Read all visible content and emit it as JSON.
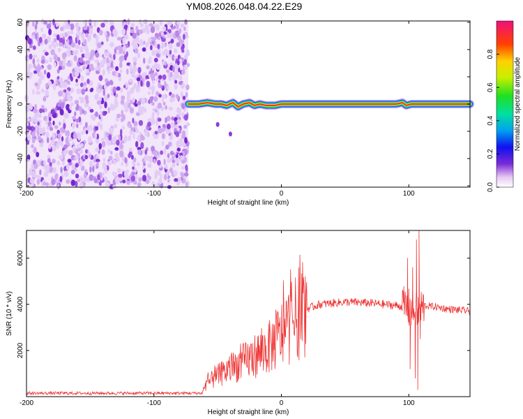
{
  "title": "YM08.2026.048.04.22.E29",
  "chart_data": [
    {
      "type": "heatmap",
      "name": "spectrogram",
      "xlabel": "Height of straight line (km)",
      "ylabel": "Frequency (Hz)",
      "xlim": [
        -200,
        148
      ],
      "ylim": [
        -61,
        61
      ],
      "xticks": [
        "-200",
        "-100",
        "0",
        "100"
      ],
      "xtick_values": [
        -200,
        -100,
        0,
        100
      ],
      "yticks": [
        "-60",
        "-40",
        "-20",
        "0",
        "20",
        "40",
        "60"
      ],
      "ytick_values": [
        -60,
        -40,
        -20,
        0,
        20,
        40,
        60
      ],
      "noise_region_x": [
        -200,
        -73
      ],
      "signal_line": {
        "x": [
          -73,
          -65,
          -58,
          -52,
          -47,
          -43,
          -38,
          -34,
          -30,
          -25,
          -21,
          -17,
          -12,
          -5,
          0,
          50,
          90,
          95,
          98,
          102,
          110,
          148
        ],
        "freq": [
          0,
          0,
          1,
          0,
          0,
          -1,
          1,
          -2,
          0,
          1,
          -1,
          0,
          -1,
          -1,
          0,
          0,
          0,
          1,
          -1,
          0,
          0,
          0
        ]
      },
      "scatter_points": [
        {
          "x": -50,
          "freq": -15
        },
        {
          "x": -40,
          "freq": -22
        }
      ],
      "colorbar": {
        "label": "Normalized spectral amplitude",
        "ticks": [
          "0.0",
          "0.2",
          "0.4",
          "0.6",
          "0.8"
        ],
        "tick_values": [
          0.0,
          0.2,
          0.4,
          0.6,
          0.8
        ],
        "range": [
          0,
          1
        ]
      }
    },
    {
      "type": "line",
      "name": "snr",
      "xlabel": "Height of straight line (km)",
      "ylabel": "SNR (10 * v/v)",
      "xlim": [
        -200,
        148
      ],
      "ylim": [
        0,
        7200
      ],
      "xticks": [
        "-200",
        "-100",
        "0",
        "100"
      ],
      "xtick_values": [
        -200,
        -100,
        0,
        100
      ],
      "yticks": [
        "2000",
        "4000",
        "6000"
      ],
      "ytick_values": [
        2000,
        4000,
        6000
      ],
      "color": "#ee3333",
      "envelope": {
        "x": [
          -200,
          -62,
          -60,
          -50,
          -40,
          -30,
          -20,
          -10,
          0,
          10,
          20,
          30,
          40,
          50,
          60,
          70,
          80,
          90,
          95,
          100,
          105,
          108,
          112,
          120,
          130,
          148
        ],
        "y": [
          150,
          150,
          500,
          900,
          1200,
          1500,
          1800,
          2100,
          2700,
          3300,
          3800,
          4000,
          4050,
          4100,
          4080,
          4050,
          4000,
          3950,
          3900,
          3800,
          3700,
          3700,
          3950,
          3900,
          3800,
          3700
        ]
      },
      "spikes": [
        {
          "x": 99,
          "y": 6000
        },
        {
          "x": 101,
          "y": 1200
        },
        {
          "x": 103,
          "y": 5600
        },
        {
          "x": 105,
          "y": 800
        },
        {
          "x": 106,
          "y": 6800
        },
        {
          "x": 107,
          "y": 300
        },
        {
          "x": 108,
          "y": 7200
        },
        {
          "x": 109,
          "y": 2500
        }
      ]
    }
  ]
}
